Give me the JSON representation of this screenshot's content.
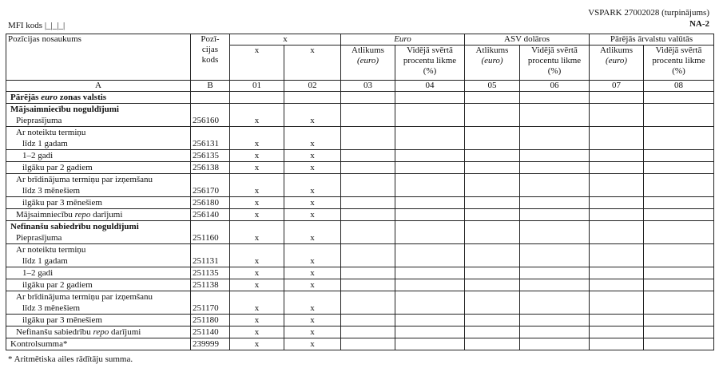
{
  "header": {
    "report": "VSPARK 27002028 (turpinājums)",
    "form": "NA-2",
    "mfi": "MFI kods |_|_|_|"
  },
  "table": {
    "name_header": "Pozīcijas nosaukums",
    "code_header": [
      "Pozī-",
      "cijas",
      "kods"
    ],
    "groups": [
      "x",
      "Euro",
      "ASV dolāros",
      "Pārējās ārvalstu valūtās"
    ],
    "x_columns": [
      "x",
      "x"
    ],
    "balance_header": [
      "Atlikums",
      "(euro)"
    ],
    "rate_header": [
      "Vidējā svērtā",
      "procentu likme",
      "(%)"
    ],
    "letters": [
      "A",
      "B",
      "01",
      "02",
      "03",
      "04",
      "05",
      "06",
      "07",
      "08"
    ],
    "rows": [
      {
        "label": [
          "Pārējās ",
          "euro",
          " zonas valstis"
        ]
      },
      {
        "heading": "Mājsaimniecību noguldījumi",
        "label": "Pieprasījuma",
        "code": "256160",
        "marks": [
          "x",
          "x"
        ]
      },
      {
        "heading": "Ar noteiktu termiņu",
        "label": "līdz 1 gadam",
        "code": "256131",
        "marks": [
          "x",
          "x"
        ]
      },
      {
        "label": "1–2 gadi",
        "code": "256135",
        "marks": [
          "x",
          "x"
        ]
      },
      {
        "label": "ilgāku par 2 gadiem",
        "code": "256138",
        "marks": [
          "x",
          "x"
        ]
      },
      {
        "heading": "Ar brīdinājuma termiņu par izņemšanu",
        "label": "līdz 3 mēnešiem",
        "code": "256170",
        "marks": [
          "x",
          "x"
        ]
      },
      {
        "label": "ilgāku par 3 mēnešiem",
        "code": "256180",
        "marks": [
          "x",
          "x"
        ]
      },
      {
        "label": [
          "Mājsaimniecību ",
          "repo",
          " darījumi"
        ],
        "code": "256140",
        "marks": [
          "x",
          "x"
        ]
      },
      {
        "heading": "Nefinanšu sabiedrību noguldījumi",
        "label": "Pieprasījuma",
        "code": "251160",
        "marks": [
          "x",
          "x"
        ]
      },
      {
        "heading": "Ar noteiktu termiņu",
        "label": "līdz 1 gadam",
        "code": "251131",
        "marks": [
          "x",
          "x"
        ]
      },
      {
        "label": "1–2 gadi",
        "code": "251135",
        "marks": [
          "x",
          "x"
        ]
      },
      {
        "label": "ilgāku par 2 gadiem",
        "code": "251138",
        "marks": [
          "x",
          "x"
        ]
      },
      {
        "heading": "Ar brīdinājuma termiņu par izņemšanu",
        "label": "līdz 3 mēnešiem",
        "code": "251170",
        "marks": [
          "x",
          "x"
        ]
      },
      {
        "label": "ilgāku par 3 mēnešiem",
        "code": "251180",
        "marks": [
          "x",
          "x"
        ]
      },
      {
        "label": [
          "Nefinanšu sabiedrību ",
          "repo",
          " darījumi"
        ],
        "code": "251140",
        "marks": [
          "x",
          "x"
        ]
      },
      {
        "label": "Kontrolsumma*",
        "code": "239999",
        "marks": [
          "x",
          "x"
        ]
      }
    ]
  },
  "footnote": "* Aritmētiska ailes rādītāju summa."
}
